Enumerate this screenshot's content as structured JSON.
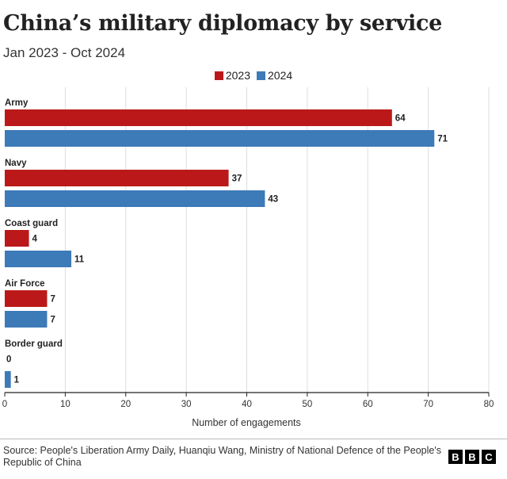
{
  "title": "China’s military diplomacy by service",
  "subtitle": "Jan 2023 - Oct 2024",
  "source": "Source: People's Liberation Army Daily, Huanqiu Wang, Ministry of National Defence of the People's Republic of China",
  "logo": [
    "B",
    "B",
    "C"
  ],
  "colors": {
    "2023": "#bb1919",
    "2024": "#3d7ab8",
    "grid": "#dddddd",
    "axis": "#222222"
  },
  "chart_data": {
    "type": "bar",
    "orientation": "horizontal",
    "categories": [
      "Army",
      "Navy",
      "Coast guard",
      "Air Force",
      "Border guard"
    ],
    "series": [
      {
        "name": "2023",
        "values": [
          64,
          37,
          4,
          7,
          0
        ]
      },
      {
        "name": "2024",
        "values": [
          71,
          43,
          11,
          7,
          1
        ]
      }
    ],
    "xlabel": "Number of engagements",
    "xlim": [
      0,
      80
    ],
    "xticks": [
      0,
      10,
      20,
      30,
      40,
      50,
      60,
      70,
      80
    ],
    "legend": "top-center",
    "grid": true
  }
}
